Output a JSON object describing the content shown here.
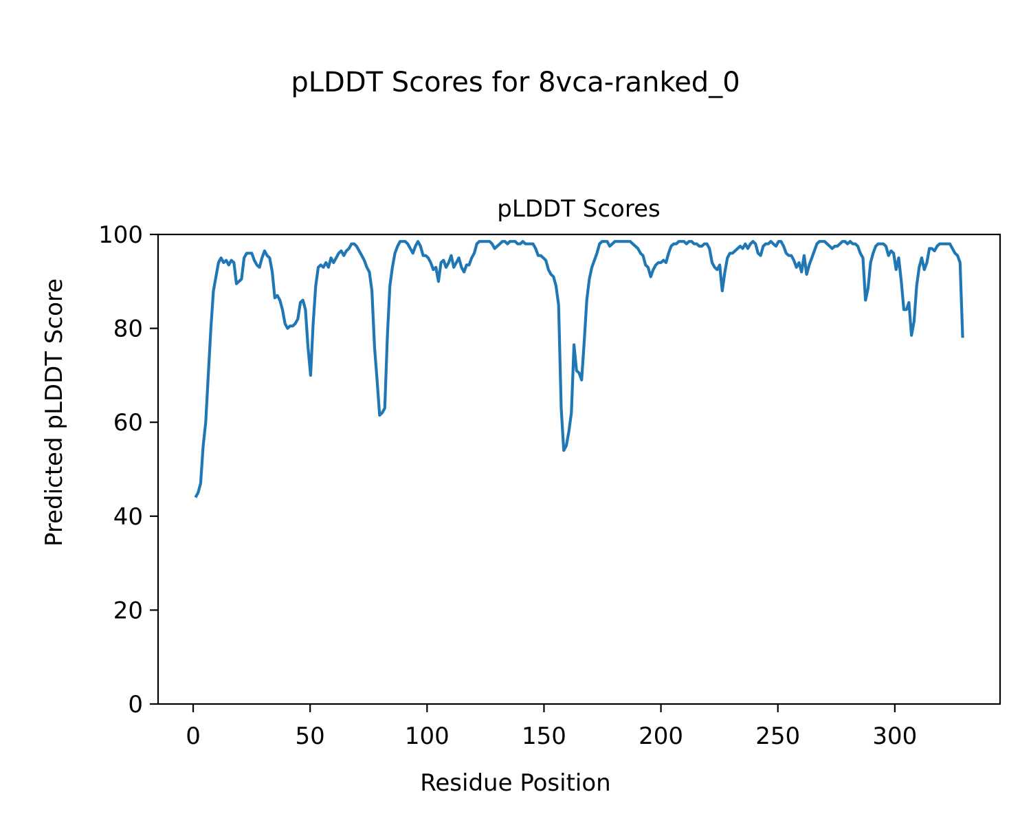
{
  "figure": {
    "suptitle": "pLDDT Scores for 8vca-ranked_0"
  },
  "chart_data": {
    "type": "line",
    "title": "pLDDT Scores",
    "xlabel": "Residue Position",
    "ylabel": "Predicted pLDDT Score",
    "xlim": [
      -15,
      345
    ],
    "ylim": [
      0,
      100
    ],
    "xticks": [
      0,
      50,
      100,
      150,
      200,
      250,
      300
    ],
    "yticks": [
      0,
      20,
      40,
      60,
      80,
      100
    ],
    "grid": false,
    "legend": "none",
    "series_color": "#1f77b4",
    "anchors": [
      [
        1,
        44
      ],
      [
        2,
        45
      ],
      [
        3,
        47
      ],
      [
        4,
        55
      ],
      [
        5,
        60
      ],
      [
        6,
        70
      ],
      [
        7,
        80
      ],
      [
        8,
        88
      ],
      [
        9,
        91
      ],
      [
        10,
        94
      ],
      [
        11,
        95
      ],
      [
        12,
        94
      ],
      [
        13,
        94.5
      ],
      [
        14,
        93.5
      ],
      [
        15,
        94.5
      ],
      [
        16,
        94
      ],
      [
        17,
        89.5
      ],
      [
        18,
        90
      ],
      [
        19,
        90.5
      ],
      [
        20,
        95
      ],
      [
        21,
        96
      ],
      [
        22,
        96
      ],
      [
        23,
        96
      ],
      [
        24,
        94.5
      ],
      [
        25,
        93.5
      ],
      [
        26,
        93
      ],
      [
        27,
        95
      ],
      [
        28,
        96.5
      ],
      [
        29,
        95.5
      ],
      [
        30,
        95
      ],
      [
        31,
        92
      ],
      [
        32,
        86.5
      ],
      [
        33,
        87
      ],
      [
        34,
        86
      ],
      [
        35,
        84
      ],
      [
        36,
        81
      ],
      [
        37,
        80
      ],
      [
        38,
        80.5
      ],
      [
        39,
        80.5
      ],
      [
        40,
        81
      ],
      [
        41,
        82
      ],
      [
        42,
        85.5
      ],
      [
        43,
        86
      ],
      [
        44,
        84
      ],
      [
        45,
        76
      ],
      [
        46,
        70
      ],
      [
        47,
        81
      ],
      [
        48,
        89
      ],
      [
        49,
        93
      ],
      [
        50,
        93.5
      ],
      [
        51,
        93
      ],
      [
        52,
        94
      ],
      [
        53,
        93
      ],
      [
        54,
        95
      ],
      [
        55,
        94
      ],
      [
        56,
        95
      ],
      [
        57,
        96
      ],
      [
        58,
        96.5
      ],
      [
        59,
        95.5
      ],
      [
        60,
        96.5
      ],
      [
        61,
        97
      ],
      [
        62,
        98
      ],
      [
        63,
        98
      ],
      [
        64,
        97.5
      ],
      [
        65,
        96.5
      ],
      [
        66,
        95.5
      ],
      [
        67,
        94.5
      ],
      [
        68,
        93
      ],
      [
        69,
        92
      ],
      [
        70,
        88
      ],
      [
        71,
        76
      ],
      [
        72,
        69
      ],
      [
        73,
        61.5
      ],
      [
        74,
        62
      ],
      [
        75,
        63
      ],
      [
        76,
        78
      ],
      [
        77,
        89
      ],
      [
        78,
        93
      ],
      [
        79,
        96
      ],
      [
        80,
        97.5
      ],
      [
        81,
        98.5
      ],
      [
        82,
        98.5
      ],
      [
        83,
        98.5
      ],
      [
        84,
        98
      ],
      [
        85,
        97
      ],
      [
        86,
        96
      ],
      [
        87,
        97.5
      ],
      [
        88,
        98.5
      ],
      [
        89,
        97.5
      ],
      [
        90,
        95.5
      ],
      [
        91,
        95.5
      ],
      [
        92,
        95
      ],
      [
        93,
        94
      ],
      [
        94,
        92.5
      ],
      [
        95,
        93
      ],
      [
        96,
        90
      ],
      [
        97,
        94
      ],
      [
        98,
        94.5
      ],
      [
        99,
        93
      ],
      [
        100,
        94
      ],
      [
        101,
        95.5
      ],
      [
        102,
        93
      ],
      [
        103,
        94
      ],
      [
        104,
        95
      ],
      [
        105,
        93
      ],
      [
        106,
        92
      ],
      [
        107,
        93.5
      ],
      [
        108,
        93.5
      ],
      [
        109,
        95
      ],
      [
        110,
        96
      ],
      [
        111,
        98
      ],
      [
        112,
        98.5
      ],
      [
        113,
        98.5
      ],
      [
        114,
        98.5
      ],
      [
        115,
        98.5
      ],
      [
        116,
        98.5
      ],
      [
        117,
        98
      ],
      [
        118,
        97
      ],
      [
        119,
        97.5
      ],
      [
        120,
        98
      ],
      [
        121,
        98.5
      ],
      [
        122,
        98.5
      ],
      [
        123,
        98
      ],
      [
        124,
        98.5
      ],
      [
        125,
        98.5
      ],
      [
        126,
        98.5
      ],
      [
        127,
        98
      ],
      [
        128,
        98
      ],
      [
        129,
        98.5
      ],
      [
        130,
        98
      ],
      [
        131,
        98
      ],
      [
        132,
        98
      ],
      [
        133,
        98
      ],
      [
        134,
        97
      ],
      [
        135,
        95.5
      ],
      [
        136,
        95.5
      ],
      [
        137,
        95
      ],
      [
        138,
        94.5
      ],
      [
        139,
        92.5
      ],
      [
        140,
        91.5
      ],
      [
        141,
        91
      ],
      [
        142,
        89
      ],
      [
        143,
        85
      ],
      [
        144,
        63
      ],
      [
        145,
        54
      ],
      [
        146,
        55
      ],
      [
        147,
        58
      ],
      [
        148,
        62
      ],
      [
        149,
        76.5
      ],
      [
        150,
        71
      ],
      [
        151,
        70.5
      ],
      [
        152,
        69
      ],
      [
        153,
        77
      ],
      [
        154,
        86
      ],
      [
        155,
        90.5
      ],
      [
        156,
        93
      ],
      [
        157,
        94.5
      ],
      [
        158,
        96
      ],
      [
        159,
        98
      ],
      [
        160,
        98.5
      ],
      [
        161,
        98.5
      ],
      [
        162,
        98.5
      ],
      [
        163,
        97.5
      ],
      [
        164,
        98
      ],
      [
        165,
        98.5
      ],
      [
        166,
        98.5
      ],
      [
        167,
        98.5
      ],
      [
        168,
        98.5
      ],
      [
        169,
        98.5
      ],
      [
        170,
        98.5
      ],
      [
        171,
        98.5
      ],
      [
        172,
        98
      ],
      [
        173,
        97.5
      ],
      [
        174,
        97
      ],
      [
        175,
        96
      ],
      [
        176,
        95.5
      ],
      [
        177,
        93.5
      ],
      [
        178,
        93
      ],
      [
        179,
        91
      ],
      [
        180,
        92.5
      ],
      [
        181,
        93.5
      ],
      [
        182,
        94
      ],
      [
        183,
        94
      ],
      [
        184,
        94.5
      ],
      [
        185,
        94
      ],
      [
        186,
        96
      ],
      [
        187,
        97.5
      ],
      [
        188,
        98
      ],
      [
        189,
        98
      ],
      [
        190,
        98.5
      ],
      [
        191,
        98.5
      ],
      [
        192,
        98.5
      ],
      [
        193,
        98
      ],
      [
        194,
        98.5
      ],
      [
        195,
        98.5
      ],
      [
        196,
        98
      ],
      [
        197,
        98
      ],
      [
        198,
        97.5
      ],
      [
        199,
        97.5
      ],
      [
        200,
        98
      ],
      [
        201,
        98
      ],
      [
        202,
        97
      ],
      [
        203,
        94
      ],
      [
        204,
        93
      ],
      [
        205,
        92.5
      ],
      [
        206,
        93.5
      ],
      [
        207,
        88
      ],
      [
        208,
        92
      ],
      [
        209,
        95
      ],
      [
        210,
        96
      ],
      [
        211,
        96
      ],
      [
        212,
        96.5
      ],
      [
        213,
        97
      ],
      [
        214,
        97.5
      ],
      [
        215,
        97
      ],
      [
        216,
        98
      ],
      [
        217,
        97
      ],
      [
        218,
        98
      ],
      [
        219,
        98.5
      ],
      [
        220,
        98
      ],
      [
        221,
        96
      ],
      [
        222,
        95.5
      ],
      [
        223,
        97.5
      ],
      [
        224,
        98
      ],
      [
        225,
        98
      ],
      [
        226,
        98.5
      ],
      [
        227,
        98
      ],
      [
        228,
        97.5
      ],
      [
        229,
        98.5
      ],
      [
        230,
        98.5
      ],
      [
        231,
        97.5
      ],
      [
        232,
        96
      ],
      [
        233,
        95.5
      ],
      [
        234,
        95.5
      ],
      [
        235,
        94.5
      ],
      [
        236,
        93
      ],
      [
        237,
        94
      ],
      [
        238,
        92
      ],
      [
        239,
        95.5
      ],
      [
        240,
        91.5
      ],
      [
        241,
        93.5
      ],
      [
        242,
        95
      ],
      [
        243,
        96.5
      ],
      [
        244,
        98
      ],
      [
        245,
        98.5
      ],
      [
        246,
        98.5
      ],
      [
        247,
        98.5
      ],
      [
        248,
        98
      ],
      [
        249,
        97.5
      ],
      [
        250,
        97
      ],
      [
        251,
        97.5
      ],
      [
        252,
        97.5
      ],
      [
        253,
        98
      ],
      [
        254,
        98.5
      ],
      [
        255,
        98.5
      ],
      [
        256,
        98
      ],
      [
        257,
        98.5
      ],
      [
        258,
        98
      ],
      [
        259,
        98
      ],
      [
        260,
        97.5
      ],
      [
        261,
        96
      ],
      [
        262,
        95
      ],
      [
        263,
        86
      ],
      [
        264,
        88.5
      ],
      [
        265,
        94
      ],
      [
        266,
        96
      ],
      [
        267,
        97.5
      ],
      [
        268,
        98
      ],
      [
        269,
        98
      ],
      [
        270,
        98
      ],
      [
        271,
        97.5
      ],
      [
        272,
        95.5
      ],
      [
        273,
        96.5
      ],
      [
        274,
        96
      ],
      [
        275,
        92.5
      ],
      [
        276,
        95
      ],
      [
        277,
        90
      ],
      [
        278,
        84
      ],
      [
        279,
        84
      ],
      [
        280,
        85.5
      ],
      [
        281,
        78.5
      ],
      [
        282,
        81.5
      ],
      [
        283,
        89
      ],
      [
        284,
        93
      ],
      [
        285,
        95
      ],
      [
        286,
        92.5
      ],
      [
        287,
        94
      ],
      [
        288,
        97
      ],
      [
        289,
        97
      ],
      [
        290,
        96.5
      ],
      [
        291,
        97.5
      ],
      [
        292,
        98
      ],
      [
        293,
        98
      ],
      [
        294,
        98
      ],
      [
        295,
        98
      ],
      [
        296,
        98
      ],
      [
        297,
        97
      ],
      [
        298,
        96
      ],
      [
        299,
        95.5
      ],
      [
        300,
        94
      ],
      [
        301,
        78
      ]
    ],
    "x_transform_note": ""
  }
}
